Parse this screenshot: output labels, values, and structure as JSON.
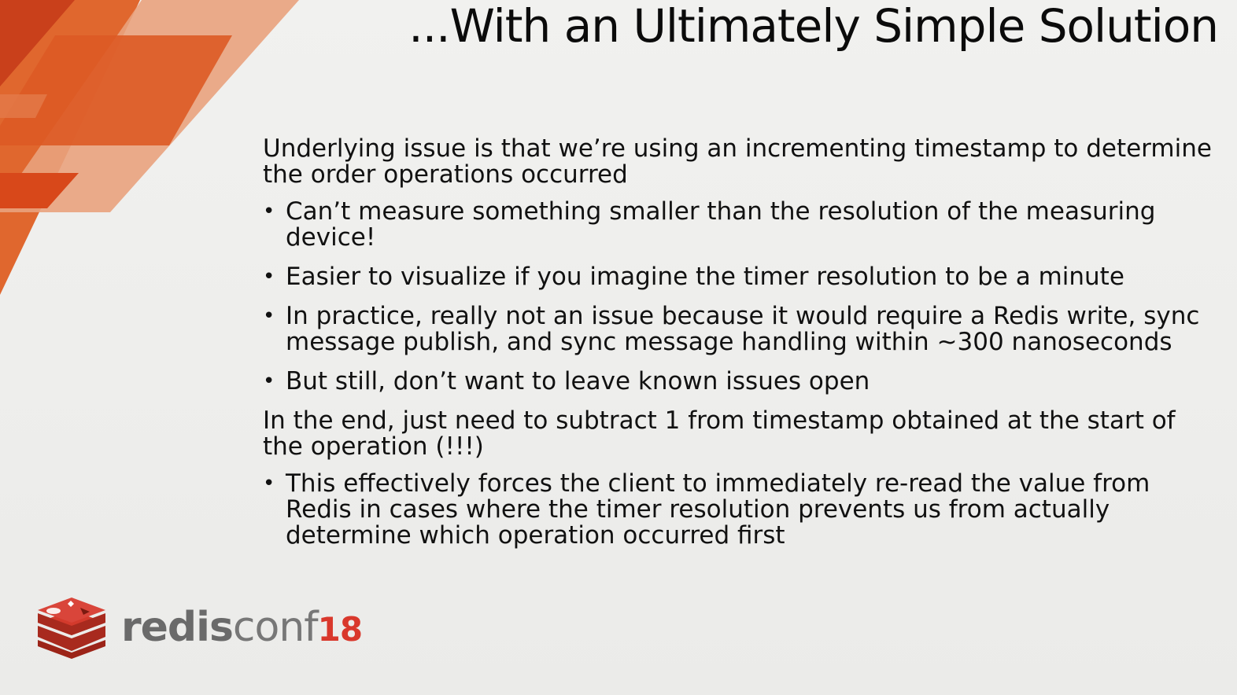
{
  "slide": {
    "title": "...With an Ultimately Simple Solution",
    "para1": "Underlying issue is that we’re using an incrementing timestamp to determine the order operations occurred",
    "bullets1": [
      "Can’t measure something smaller than the resolution of the measuring device!",
      "Easier to visualize if you imagine the timer resolution to be a minute",
      "In practice, really not an issue because it would require a Redis write, sync message publish, and sync message handling within ~300 nanoseconds",
      "But still, don’t want to leave known issues open"
    ],
    "para2": "In the end, just need to subtract 1 from timestamp obtained at the start of the operation (!!!)",
    "bullets2": [
      "This effectively forces the client to immediately re-read the value from Redis in cases where the timer resolution prevents us from actually determine which operation occurred first"
    ]
  },
  "logo": {
    "part1": "redis",
    "part2": "conf",
    "part3": "18",
    "icon": "redis-logo-icon"
  },
  "colors": {
    "accent_dark": "#d8481a",
    "accent_mid": "#e0672e",
    "accent_light": "#e99a6f",
    "redis_red": "#d33a2c"
  }
}
